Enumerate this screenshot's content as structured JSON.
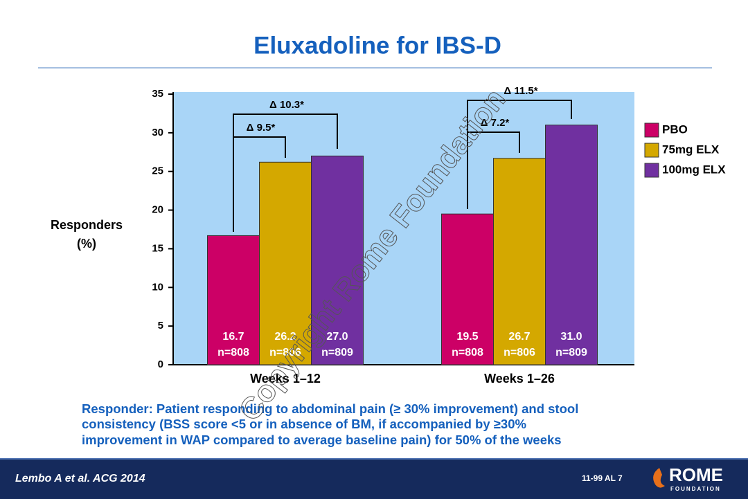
{
  "slide": {
    "title": "Eluxadoline for IBS-D",
    "footnote": [
      "Responder: Patient responding to abdominal pain  (≥ 30% improvement) and stool",
      "consistency (BSS score <5 or in absence of BM, if accompanied by ≥30%",
      "improvement in WAP compared to average baseline pain) for 50% of the weeks"
    ],
    "citation": "Lembo A et al. ACG 2014",
    "code": "11-99  AL 7",
    "logo": [
      "ROME",
      "FOUNDATION"
    ],
    "watermark": "Copyright Rome Foundation"
  },
  "chart_data": {
    "type": "bar",
    "y_label": [
      "Responders",
      "(%)"
    ],
    "categories": [
      "Weeks 1–12",
      "Weeks 1–26"
    ],
    "series": [
      {
        "name": "PBO",
        "color": "#cc0066",
        "values": [
          16.7,
          19.5
        ],
        "value_labels": [
          "16.7",
          "19.5"
        ],
        "n_labels": [
          "n=808",
          "n=808"
        ]
      },
      {
        "name": "75mg ELX",
        "color": "#d4a800",
        "values": [
          26.2,
          26.7
        ],
        "value_labels": [
          "26.2",
          "26.7"
        ],
        "n_labels": [
          "n=806",
          "n=806"
        ]
      },
      {
        "name": "100mg ELX",
        "color": "#7030a0",
        "values": [
          27.0,
          31.0
        ],
        "value_labels": [
          "27.0",
          "31.0"
        ],
        "n_labels": [
          "n=809",
          "n=809"
        ]
      }
    ],
    "annotations": [
      "Δ 9.5*",
      "Δ 10.3*",
      "Δ 7.2*",
      "Δ 11.5*"
    ],
    "ylim": [
      0,
      35
    ],
    "yticks": [
      0,
      5,
      10,
      15,
      20,
      25,
      30,
      35
    ],
    "legend": "right"
  }
}
